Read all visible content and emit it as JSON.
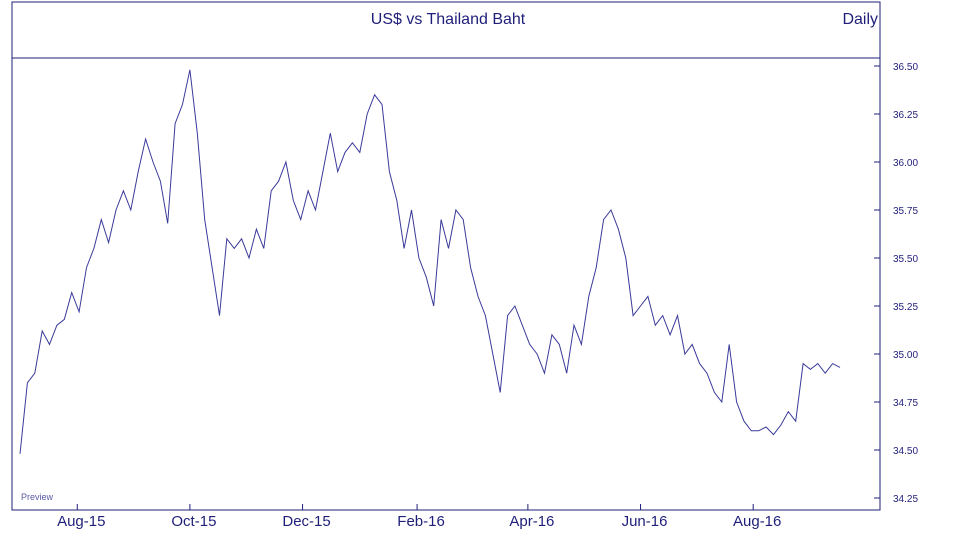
{
  "chart_data": {
    "type": "line",
    "title": "US$ vs Thailand Baht",
    "frequency_label": "Daily",
    "watermark": "Preview",
    "line_color": "#3a3a9a",
    "frame_color": "#1f1f7a",
    "xlabel": "",
    "ylabel": "",
    "ylim": [
      34.25,
      36.5
    ],
    "xlim": [
      "2015-07-01",
      "2016-09-30"
    ],
    "grid": false,
    "y_ticks": [
      "34.25",
      "34.50",
      "34.75",
      "35.00",
      "35.25",
      "35.50",
      "35.75",
      "36.00",
      "36.25",
      "36.50"
    ],
    "x_ticks": [
      {
        "label": "Aug-15",
        "date": "2015-08-01"
      },
      {
        "label": "Oct-15",
        "date": "2015-10-01"
      },
      {
        "label": "Dec-15",
        "date": "2015-12-01"
      },
      {
        "label": "Feb-16",
        "date": "2016-02-01"
      },
      {
        "label": "Apr-16",
        "date": "2016-04-01"
      },
      {
        "label": "Jun-16",
        "date": "2016-06-01"
      },
      {
        "label": "Aug-16",
        "date": "2016-08-01"
      }
    ],
    "series": [
      {
        "x": [
          "2015-07-01",
          "2015-07-05",
          "2015-07-09",
          "2015-07-13",
          "2015-07-17",
          "2015-07-21",
          "2015-07-25",
          "2015-07-29",
          "2015-08-02",
          "2015-08-06",
          "2015-08-10",
          "2015-08-14",
          "2015-08-18",
          "2015-08-22",
          "2015-08-26",
          "2015-08-30",
          "2015-09-03",
          "2015-09-07",
          "2015-09-11",
          "2015-09-15",
          "2015-09-19",
          "2015-09-23",
          "2015-09-27",
          "2015-10-01",
          "2015-10-05",
          "2015-10-09",
          "2015-10-13",
          "2015-10-17",
          "2015-10-21",
          "2015-10-25",
          "2015-10-29",
          "2015-11-02",
          "2015-11-06",
          "2015-11-10",
          "2015-11-14",
          "2015-11-18",
          "2015-11-22",
          "2015-11-26",
          "2015-11-30",
          "2015-12-04",
          "2015-12-08",
          "2015-12-12",
          "2015-12-16",
          "2015-12-20",
          "2015-12-24",
          "2015-12-28",
          "2016-01-01",
          "2016-01-05",
          "2016-01-09",
          "2016-01-13",
          "2016-01-17",
          "2016-01-21",
          "2016-01-25",
          "2016-01-29",
          "2016-02-02",
          "2016-02-06",
          "2016-02-10",
          "2016-02-14",
          "2016-02-18",
          "2016-02-22",
          "2016-02-26",
          "2016-03-01",
          "2016-03-05",
          "2016-03-09",
          "2016-03-13",
          "2016-03-17",
          "2016-03-21",
          "2016-03-25",
          "2016-03-29",
          "2016-04-02",
          "2016-04-06",
          "2016-04-10",
          "2016-04-14",
          "2016-04-18",
          "2016-04-22",
          "2016-04-26",
          "2016-04-30",
          "2016-05-04",
          "2016-05-08",
          "2016-05-12",
          "2016-05-16",
          "2016-05-20",
          "2016-05-24",
          "2016-05-28",
          "2016-06-01",
          "2016-06-05",
          "2016-06-09",
          "2016-06-13",
          "2016-06-17",
          "2016-06-21",
          "2016-06-25",
          "2016-06-29",
          "2016-07-03",
          "2016-07-07",
          "2016-07-11",
          "2016-07-15",
          "2016-07-19",
          "2016-07-23",
          "2016-07-27",
          "2016-07-31",
          "2016-08-04",
          "2016-08-08",
          "2016-08-12",
          "2016-08-16",
          "2016-08-20",
          "2016-08-24",
          "2016-08-28",
          "2016-09-01",
          "2016-09-05",
          "2016-09-09",
          "2016-09-13",
          "2016-09-17"
        ],
        "y": [
          34.48,
          34.85,
          34.9,
          35.12,
          35.05,
          35.15,
          35.18,
          35.32,
          35.22,
          35.45,
          35.55,
          35.7,
          35.58,
          35.75,
          35.85,
          35.75,
          35.95,
          36.12,
          36.0,
          35.9,
          35.68,
          36.2,
          36.3,
          36.48,
          36.15,
          35.7,
          35.45,
          35.2,
          35.6,
          35.55,
          35.6,
          35.5,
          35.65,
          35.55,
          35.85,
          35.9,
          36.0,
          35.8,
          35.7,
          35.85,
          35.75,
          35.95,
          36.15,
          35.95,
          36.05,
          36.1,
          36.05,
          36.25,
          36.35,
          36.3,
          35.95,
          35.8,
          35.55,
          35.75,
          35.5,
          35.4,
          35.25,
          35.7,
          35.55,
          35.75,
          35.7,
          35.45,
          35.3,
          35.2,
          35.0,
          34.8,
          35.2,
          35.25,
          35.15,
          35.05,
          35.0,
          34.9,
          35.1,
          35.05,
          34.9,
          35.15,
          35.05,
          35.3,
          35.45,
          35.7,
          35.75,
          35.65,
          35.5,
          35.2,
          35.25,
          35.3,
          35.15,
          35.2,
          35.1,
          35.2,
          35.0,
          35.05,
          34.95,
          34.9,
          34.8,
          34.75,
          35.05,
          34.75,
          34.65,
          34.6,
          34.6,
          34.62,
          34.58,
          34.63,
          34.7,
          34.65,
          34.95,
          34.92,
          34.95,
          34.9,
          34.95,
          34.93
        ]
      }
    ]
  }
}
